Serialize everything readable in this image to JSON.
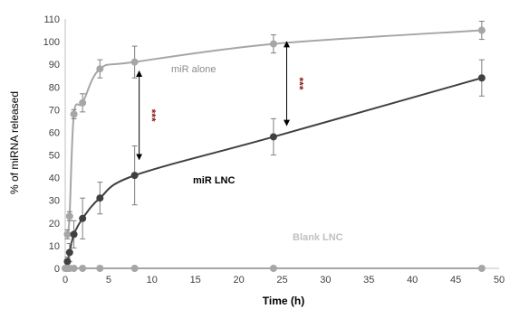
{
  "chart_data": {
    "type": "line",
    "xlabel": "Time (h)",
    "ylabel": "% of miRNA released",
    "xlim": [
      0,
      50
    ],
    "ylim": [
      0,
      110
    ],
    "x_ticks": [
      "0",
      "5",
      "10",
      "15",
      "20",
      "25",
      "30",
      "35",
      "40",
      "45",
      "50"
    ],
    "y_ticks": [
      "0",
      "10",
      "20",
      "30",
      "40",
      "50",
      "60",
      "70",
      "80",
      "90",
      "100",
      "110"
    ],
    "grid": false,
    "legend": "none",
    "series": [
      {
        "name": "miR alone",
        "color": "#a6a6a6",
        "x": [
          0.25,
          0.5,
          1,
          2,
          4,
          8,
          24,
          48
        ],
        "y": [
          15,
          23,
          68,
          73,
          88,
          91,
          99,
          105
        ],
        "err": [
          2,
          2,
          2,
          4,
          4,
          7,
          4,
          4
        ]
      },
      {
        "name": "miR LNC",
        "color": "#404040",
        "x": [
          0.25,
          0.5,
          1,
          2,
          4,
          8,
          24,
          48
        ],
        "y": [
          3,
          7,
          15,
          22,
          31,
          41,
          58,
          84
        ],
        "err": [
          2,
          4,
          6,
          9,
          7,
          13,
          8,
          8
        ]
      },
      {
        "name": "Blank LNC",
        "color": "#a6a6a6",
        "x": [
          0,
          0.25,
          0.5,
          1,
          2,
          4,
          8,
          24,
          48
        ],
        "y": [
          0,
          0,
          0,
          0,
          0,
          0,
          0,
          0,
          0
        ],
        "err": []
      }
    ],
    "annotations": [
      {
        "text": "***",
        "x": 8,
        "y1": 87,
        "y2": 48
      },
      {
        "text": "***",
        "x": 25,
        "y1": 100,
        "y2": 63
      }
    ]
  }
}
